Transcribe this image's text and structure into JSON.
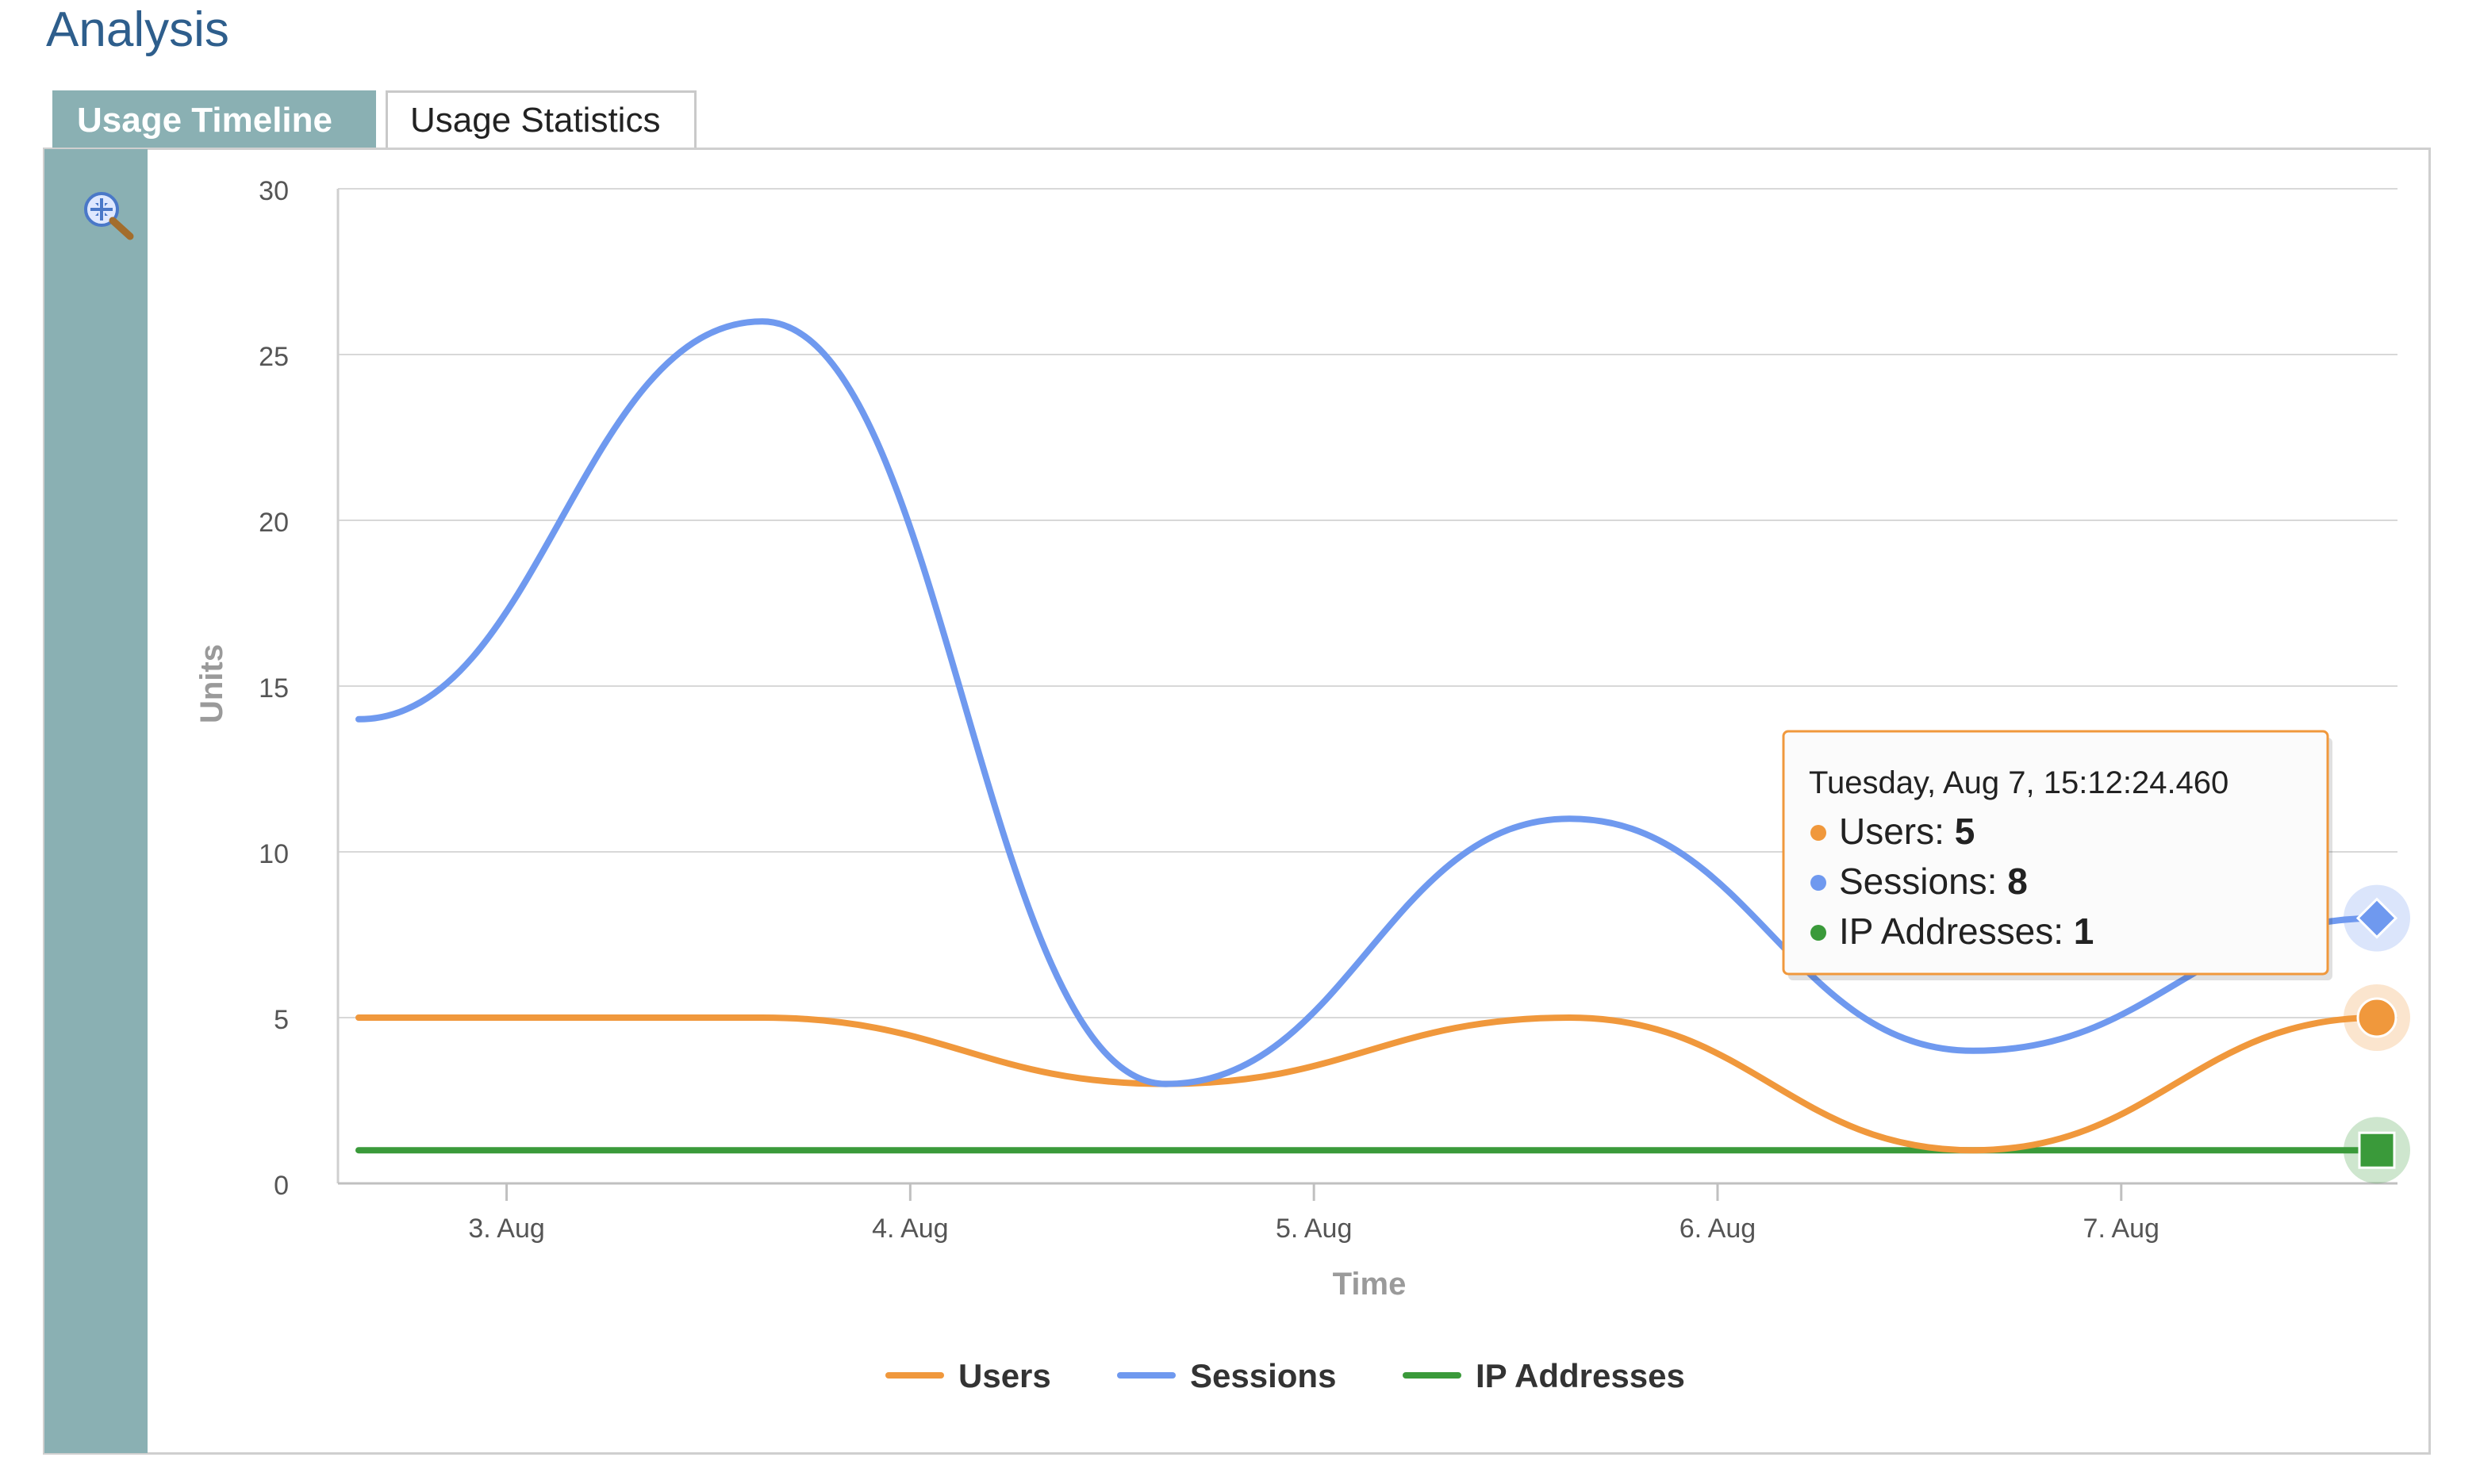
{
  "page": {
    "title": "Analysis"
  },
  "tabs": [
    {
      "label": "Usage Timeline",
      "active": true
    },
    {
      "label": "Usage Statistics",
      "active": false
    }
  ],
  "toolbar": {
    "zoom_icon": "zoom-magnifier-icon"
  },
  "colors": {
    "users": "#f0983c",
    "sessions": "#6f99ef",
    "ip": "#3a9a3a",
    "accent": "#8ab0b3",
    "title": "#2e5e8c"
  },
  "chart_data": {
    "type": "line",
    "xlabel": "Time",
    "ylabel": "Units",
    "ylim": [
      0,
      30
    ],
    "yticks": [
      0,
      5,
      10,
      15,
      20,
      25,
      30
    ],
    "xlim": [
      "2012-08-02",
      "2012-08-07"
    ],
    "xticks": [
      {
        "date": "2012-08-03",
        "label": "3. Aug"
      },
      {
        "date": "2012-08-04",
        "label": "4. Aug"
      },
      {
        "date": "2012-08-05",
        "label": "5. Aug"
      },
      {
        "date": "2012-08-06",
        "label": "6. Aug"
      },
      {
        "date": "2012-08-07",
        "label": "7. Aug"
      }
    ],
    "grid": true,
    "legend": "bottom-center",
    "x": [
      "2012-08-02 15:12",
      "2012-08-03 15:12",
      "2012-08-04 15:12",
      "2012-08-05 15:12",
      "2012-08-06 15:12",
      "2012-08-07 15:12"
    ],
    "series": [
      {
        "name": "Users",
        "values": [
          5,
          5,
          3,
          5,
          1,
          5
        ]
      },
      {
        "name": "Sessions",
        "values": [
          14,
          26,
          3,
          11,
          4,
          8
        ]
      },
      {
        "name": "IP Addresses",
        "values": [
          1,
          1,
          1,
          1,
          1,
          1
        ]
      }
    ],
    "tooltip": {
      "title": "Tuesday, Aug 7, 15:12:24.460",
      "rows": [
        {
          "label": "Users:",
          "value": "5"
        },
        {
          "label": "Sessions:",
          "value": "8"
        },
        {
          "label": "IP Addresses:",
          "value": "1"
        }
      ]
    }
  }
}
